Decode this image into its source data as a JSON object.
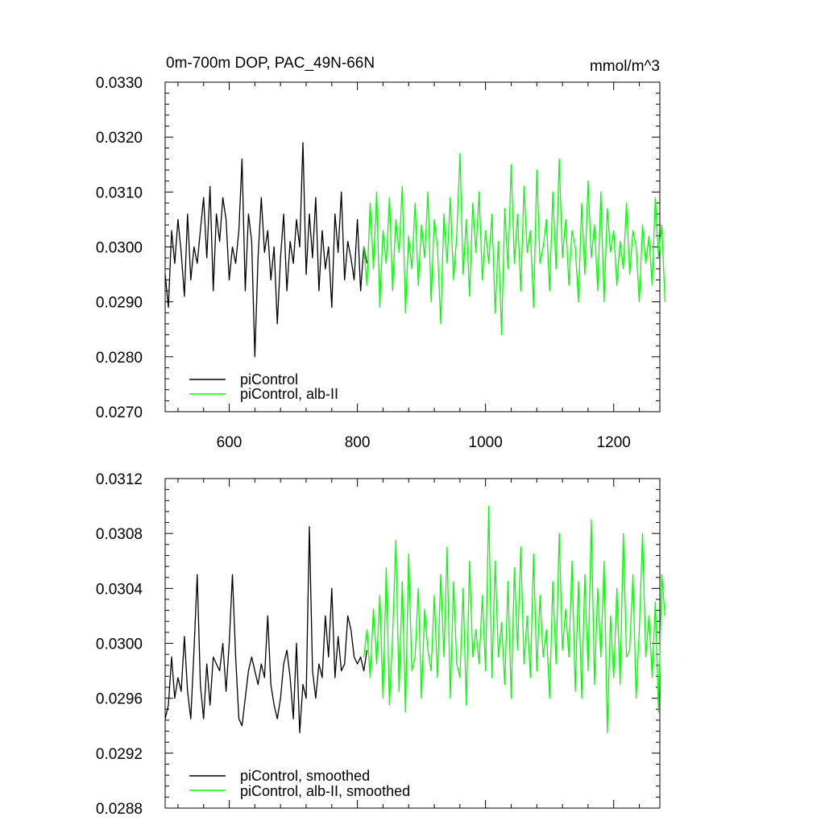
{
  "chart_data": [
    {
      "type": "line",
      "title": "0m-700m DOP, PAC_49N-66N",
      "units": "mmol/m^3",
      "xlim": [
        500,
        1272
      ],
      "ylim": [
        0.027,
        0.033
      ],
      "x_ticks": [
        600,
        800,
        1000,
        1200
      ],
      "x_tick_labels": [
        "600",
        "800",
        "1000",
        "1200"
      ],
      "y_ticks": [
        0.027,
        0.028,
        0.029,
        0.03,
        0.031,
        0.032,
        0.033
      ],
      "y_tick_labels": [
        "0.0270",
        "0.0280",
        "0.0290",
        "0.0300",
        "0.0310",
        "0.0320",
        "0.0330"
      ],
      "legend_position": "bottom-left",
      "series": [
        {
          "name": "piControl",
          "color": "#000000",
          "x_start": 500,
          "x_step": 5,
          "values": [
            0.0295,
            0.0289,
            0.0303,
            0.0297,
            0.0305,
            0.0299,
            0.0291,
            0.0306,
            0.0294,
            0.03,
            0.0297,
            0.0303,
            0.0309,
            0.0298,
            0.0311,
            0.0292,
            0.0306,
            0.0301,
            0.0309,
            0.0305,
            0.0294,
            0.03,
            0.0297,
            0.0303,
            0.0316,
            0.0292,
            0.0306,
            0.0301,
            0.028,
            0.0298,
            0.0309,
            0.0299,
            0.0303,
            0.0294,
            0.03,
            0.0286,
            0.0298,
            0.0306,
            0.0292,
            0.0301,
            0.0297,
            0.0305,
            0.03,
            0.0319,
            0.0295,
            0.0306,
            0.0298,
            0.0309,
            0.0292,
            0.0303,
            0.0296,
            0.03,
            0.0289,
            0.0306,
            0.0299,
            0.031,
            0.0294,
            0.0301,
            0.0298,
            0.0294,
            0.0305,
            0.0292,
            0.03,
            0.0297
          ],
          "smoothed_values": [
            0.02945,
            0.02955,
            0.0299,
            0.0296,
            0.02975,
            0.02965,
            0.03005,
            0.02965,
            0.02945,
            0.02995,
            0.0305,
            0.0297,
            0.02945,
            0.02985,
            0.02955,
            0.0299,
            0.02985,
            0.0298,
            0.03,
            0.02965,
            0.03,
            0.0305,
            0.0299,
            0.02945,
            0.0294,
            0.0296,
            0.0298,
            0.0299,
            0.0298,
            0.0297,
            0.02985,
            0.02975,
            0.0302,
            0.0297,
            0.02955,
            0.02945,
            0.0296,
            0.02985,
            0.02995,
            0.02975,
            0.02945,
            0.03,
            0.02935,
            0.0297,
            0.0296,
            0.03085,
            0.0298,
            0.0296,
            0.02985,
            0.02975,
            0.0302,
            0.0299,
            0.0304,
            0.02975,
            0.03005,
            0.0298,
            0.02985,
            0.0302,
            0.0301,
            0.0299,
            0.02985,
            0.0299,
            0.0298,
            0.02995
          ]
        },
        {
          "name": "piControl, alb-II",
          "color": "#00ff00",
          "x_start": 810,
          "x_step": 5,
          "values": [
            0.03,
            0.0293,
            0.0308,
            0.0296,
            0.031,
            0.0289,
            0.0303,
            0.0297,
            0.0309,
            0.0292,
            0.0305,
            0.0299,
            0.0311,
            0.0288,
            0.0302,
            0.0296,
            0.0308,
            0.0293,
            0.0304,
            0.0298,
            0.031,
            0.029,
            0.0305,
            0.03,
            0.0286,
            0.0306,
            0.0297,
            0.0309,
            0.0294,
            0.0302,
            0.0317,
            0.0295,
            0.0305,
            0.0291,
            0.0308,
            0.0299,
            0.031,
            0.0294,
            0.0303,
            0.0297,
            0.0306,
            0.0288,
            0.0301,
            0.0284,
            0.0307,
            0.0296,
            0.0315,
            0.0297,
            0.0306,
            0.0292,
            0.0311,
            0.0299,
            0.0303,
            0.0289,
            0.0314,
            0.0297,
            0.03,
            0.0305,
            0.0292,
            0.031,
            0.0296,
            0.0316,
            0.0298,
            0.0305,
            0.0293,
            0.0303,
            0.03,
            0.029,
            0.0308,
            0.0295,
            0.0312,
            0.0298,
            0.0304,
            0.0292,
            0.031,
            0.029,
            0.0307,
            0.0299,
            0.0303,
            0.0293,
            0.0301,
            0.0296,
            0.0308,
            0.0295,
            0.0303,
            0.03,
            0.029,
            0.0304,
            0.0297,
            0.0302,
            0.0293,
            0.0309,
            0.0298,
            0.0304,
            0.029
          ],
          "smoothed_values": [
            0.0299,
            0.0301,
            0.02975,
            0.03025,
            0.02985,
            0.03035,
            0.0296,
            0.03055,
            0.02955,
            0.03005,
            0.03075,
            0.02965,
            0.03045,
            0.0295,
            0.03065,
            0.0298,
            0.0299,
            0.0304,
            0.0296,
            0.03025,
            0.02995,
            0.0298,
            0.03035,
            0.02975,
            0.0305,
            0.0299,
            0.0307,
            0.0296,
            0.03045,
            0.02985,
            0.02975,
            0.0304,
            0.02955,
            0.0306,
            0.0299,
            0.0301,
            0.02985,
            0.03035,
            0.0298,
            0.031,
            0.02975,
            0.0306,
            0.0299,
            0.03015,
            0.0297,
            0.03045,
            0.0296,
            0.03055,
            0.02995,
            0.0307,
            0.02985,
            0.0302,
            0.02975,
            0.03065,
            0.0298,
            0.03035,
            0.0299,
            0.0301,
            0.0296,
            0.03045,
            0.02985,
            0.0308,
            0.02995,
            0.03025,
            0.0299,
            0.0306,
            0.02965,
            0.03045,
            0.0296,
            0.0305,
            0.0298,
            0.0309,
            0.0297,
            0.0304,
            0.0299,
            0.0306,
            0.02935,
            0.0302,
            0.02975,
            0.0304,
            0.0297,
            0.0308,
            0.0299,
            0.02995,
            0.0305,
            0.0296,
            0.0301,
            0.0308,
            0.0299,
            0.0302,
            0.02975,
            0.0303,
            0.0295,
            0.0305,
            0.0302
          ]
        }
      ]
    },
    {
      "type": "line",
      "xlim": [
        500,
        1272
      ],
      "ylim": [
        0.0288,
        0.0312
      ],
      "x_ticks": [
        600,
        800,
        1000,
        1200
      ],
      "y_ticks": [
        0.0288,
        0.0292,
        0.0296,
        0.03,
        0.0304,
        0.0308,
        0.0312
      ],
      "y_tick_labels": [
        "0.0288",
        "0.0292",
        "0.0296",
        "0.0300",
        "0.0304",
        "0.0308",
        "0.0312"
      ],
      "legend_position": "bottom-left",
      "series": [
        {
          "name": "piControl, smoothed",
          "color": "#000000"
        },
        {
          "name": "piControl, alb-II, smoothed",
          "color": "#00ff00"
        }
      ]
    }
  ]
}
